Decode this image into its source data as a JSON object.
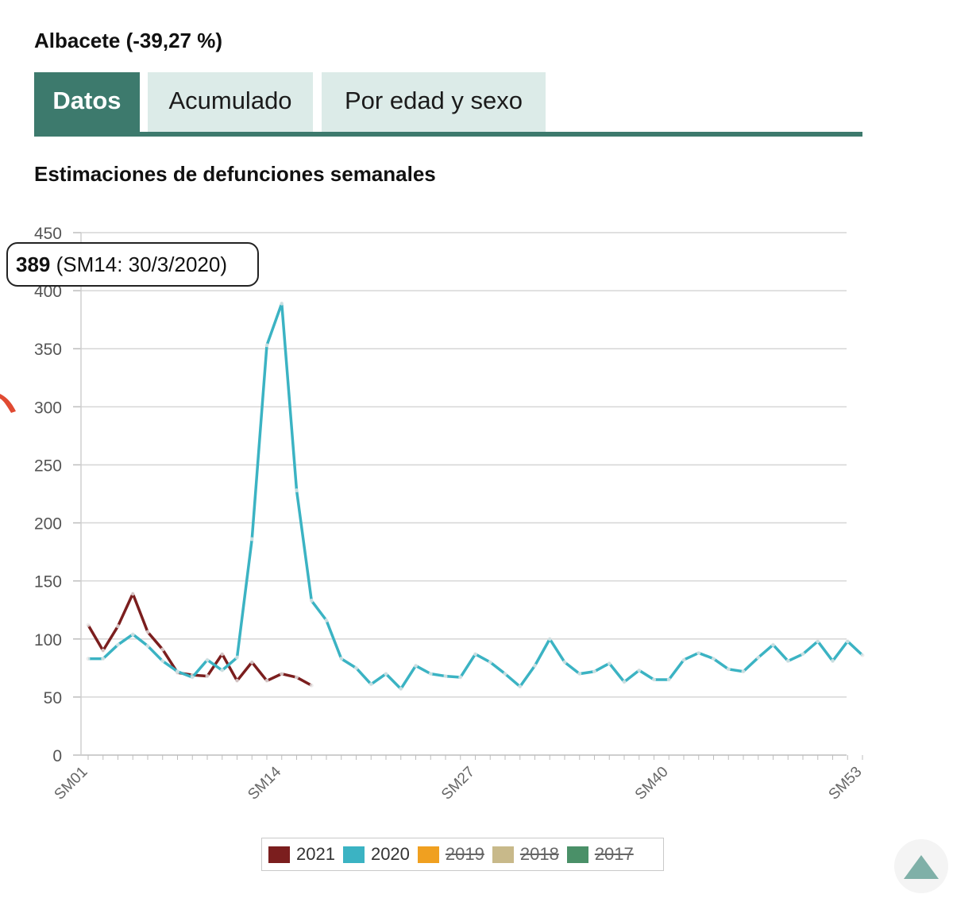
{
  "page": {
    "heading": "Albacete (-39,27 %)"
  },
  "tabs": [
    {
      "label": "Datos",
      "active": true
    },
    {
      "label": "Acumulado",
      "active": false
    },
    {
      "label": "Por edad y sexo",
      "active": false
    }
  ],
  "chart_heading": "Estimaciones de defunciones semanales",
  "tooltip": {
    "value": "389",
    "detail": "(SM14: 30/3/2020)"
  },
  "colors": {
    "accent": "#3d7a6d",
    "tab_inactive": "#dcebe8",
    "series_2021": "#7b1e1e",
    "series_2020": "#3bb3c3",
    "series_2019": "#f0a020",
    "series_2018": "#c8b98a",
    "series_2017": "#4a9068"
  },
  "chart_data": {
    "type": "line",
    "title": "Estimaciones de defunciones semanales",
    "xlabel": "",
    "ylabel": "",
    "x_tick_labels": [
      "SM01",
      "SM14",
      "SM27",
      "SM40",
      "SM53"
    ],
    "ylim": [
      0,
      450
    ],
    "y_ticks": [
      0,
      50,
      100,
      150,
      200,
      250,
      300,
      350,
      400,
      450
    ],
    "grid": true,
    "legend_position": "bottom",
    "series": [
      {
        "name": "2021",
        "color": "#7b1e1e",
        "visible": true,
        "start_week": 1,
        "values": [
          112,
          90,
          111,
          139,
          106,
          91,
          71,
          69,
          68,
          87,
          64,
          80,
          64,
          70,
          67,
          60
        ]
      },
      {
        "name": "2020",
        "color": "#3bb3c3",
        "visible": true,
        "start_week": 1,
        "values": [
          83,
          83,
          95,
          104,
          94,
          81,
          72,
          67,
          82,
          73,
          84,
          186,
          353,
          389,
          228,
          133,
          116,
          83,
          75,
          61,
          70,
          57,
          77,
          70,
          68,
          67,
          87,
          80,
          70,
          59,
          77,
          100,
          80,
          70,
          72,
          79,
          63,
          73,
          65,
          65,
          82,
          88,
          83,
          74,
          72,
          84,
          95,
          81,
          87,
          98,
          81,
          98,
          86
        ]
      },
      {
        "name": "2019",
        "color": "#f0a020",
        "visible": false,
        "values": []
      },
      {
        "name": "2018",
        "color": "#c8b98a",
        "visible": false,
        "values": []
      },
      {
        "name": "2017",
        "color": "#4a9068",
        "visible": false,
        "values": []
      }
    ]
  }
}
